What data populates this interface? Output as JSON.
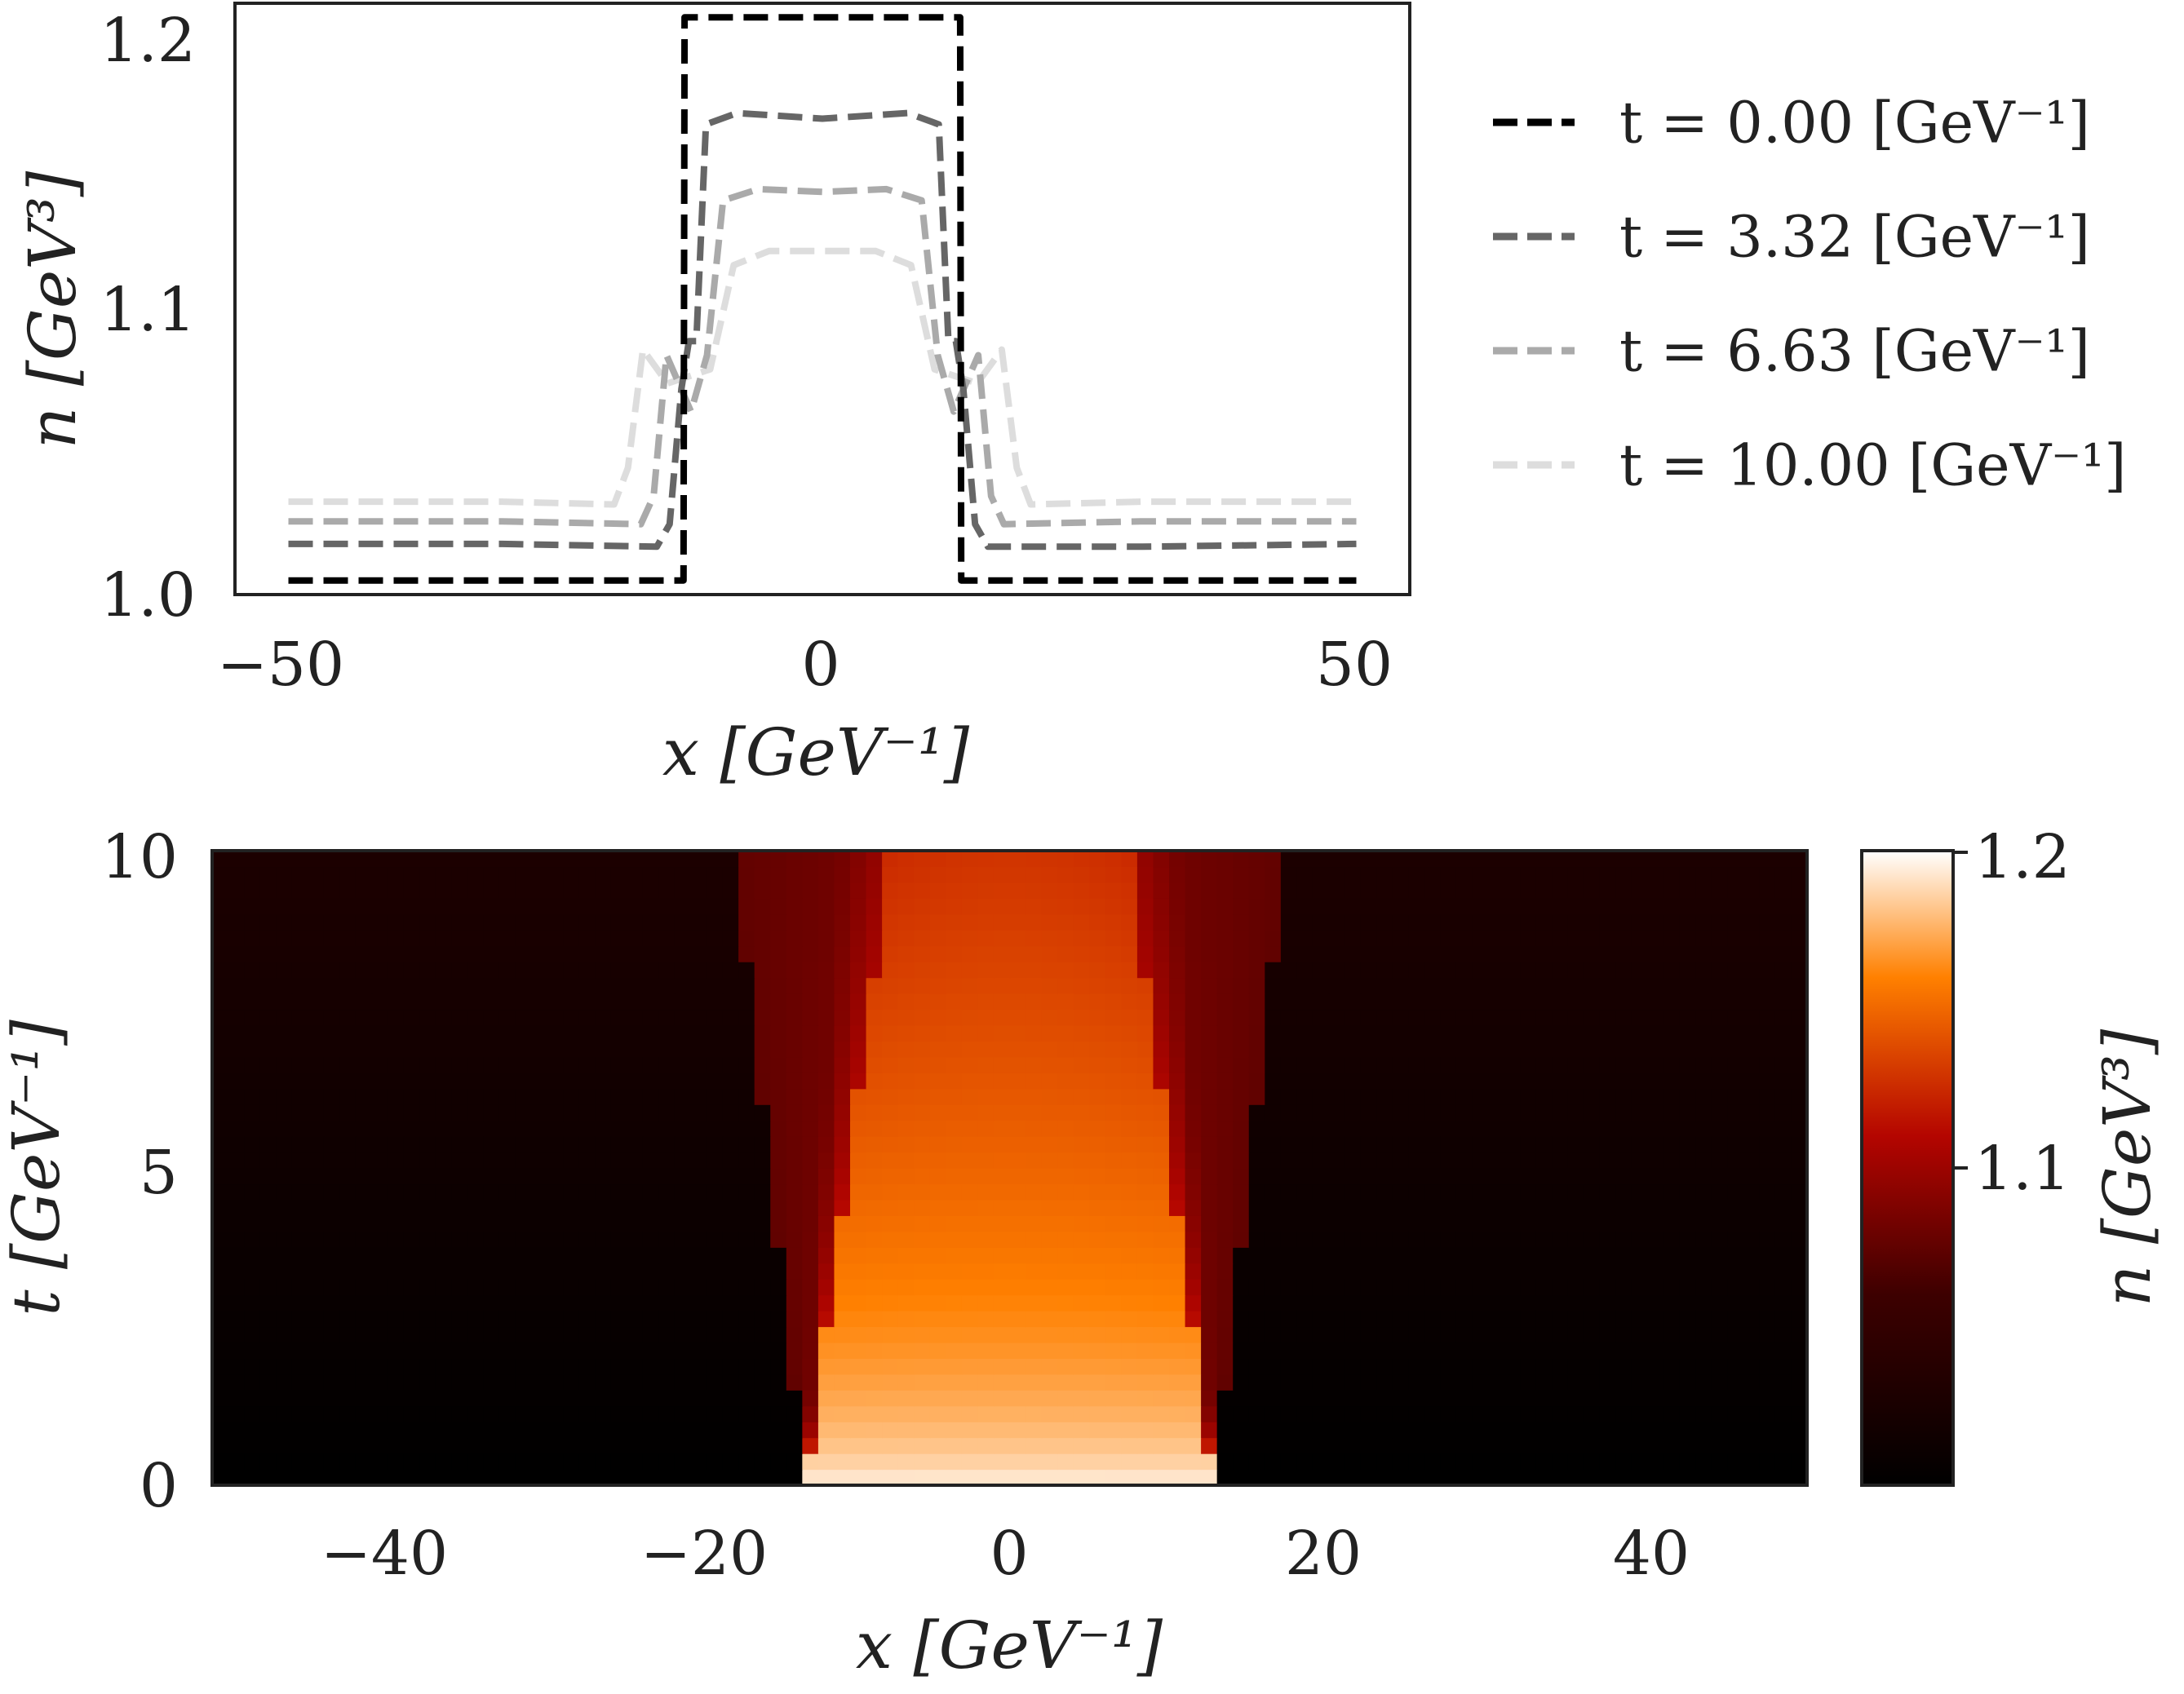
{
  "chart_data": [
    {
      "type": "line",
      "xlabel": "x [GeV⁻¹]",
      "ylabel": "n [GeV³]",
      "xlim": [
        -55,
        55
      ],
      "ylim": [
        0.995,
        1.205
      ],
      "xticks": [
        -50,
        0,
        50
      ],
      "xtick_labels": [
        "−50",
        "0",
        "50"
      ],
      "yticks": [
        1.0,
        1.1,
        1.2
      ],
      "ytick_labels": [
        "1.0",
        "1.1",
        "1.2"
      ],
      "grid": false,
      "legend_position": "outside-right",
      "line_style": "dashed",
      "series": [
        {
          "name": "t = 0.00 [GeV⁻¹]",
          "color": "#000000",
          "x": [
            -50,
            -13.0,
            -12.9,
            0,
            12.9,
            13.0,
            50
          ],
          "y": [
            1.0,
            1.0,
            1.2,
            1.2,
            1.2,
            1.0,
            1.0
          ]
        },
        {
          "name": "t = 3.32 [GeV⁻¹]",
          "color": "#666666",
          "x": [
            -50,
            -30,
            -15.5,
            -14.3,
            -13.2,
            -12.5,
            -11.8,
            -10.9,
            -8,
            0,
            8,
            10.9,
            11.8,
            12.5,
            13.2,
            14.3,
            15.5,
            30,
            50
          ],
          "y": [
            1.013,
            1.013,
            1.012,
            1.02,
            1.068,
            1.085,
            1.085,
            1.162,
            1.166,
            1.164,
            1.166,
            1.162,
            1.085,
            1.085,
            1.068,
            1.02,
            1.012,
            1.012,
            1.013
          ]
        },
        {
          "name": "t = 6.63 [GeV⁻¹]",
          "color": "#aaaaaa",
          "x": [
            -50,
            -30,
            -17.0,
            -15.8,
            -14.6,
            -12.3,
            -10.8,
            -9.3,
            -6,
            0,
            6,
            9.3,
            10.8,
            12.3,
            14.6,
            15.8,
            17.0,
            30,
            50
          ],
          "y": [
            1.021,
            1.021,
            1.02,
            1.03,
            1.08,
            1.06,
            1.08,
            1.135,
            1.139,
            1.138,
            1.139,
            1.135,
            1.08,
            1.06,
            1.08,
            1.03,
            1.02,
            1.021,
            1.021
          ]
        },
        {
          "name": "t = 10.00 [GeV⁻¹]",
          "color": "#dddddd",
          "x": [
            -50,
            -30,
            -19.5,
            -18.2,
            -16.8,
            -14.5,
            -10.5,
            -8.3,
            -5,
            0,
            5,
            8.3,
            10.5,
            14.5,
            16.8,
            18.2,
            19.5,
            30,
            50
          ],
          "y": [
            1.028,
            1.028,
            1.027,
            1.04,
            1.082,
            1.07,
            1.075,
            1.112,
            1.117,
            1.117,
            1.117,
            1.112,
            1.075,
            1.07,
            1.082,
            1.04,
            1.027,
            1.028,
            1.028
          ]
        }
      ]
    },
    {
      "type": "heatmap",
      "xlabel": "x [GeV⁻¹]",
      "ylabel": "t [GeV⁻¹]",
      "xlim": [
        -50,
        50
      ],
      "ylim": [
        0,
        10
      ],
      "xticks": [
        -40,
        -20,
        0,
        20,
        40
      ],
      "xtick_labels": [
        "−40",
        "−20",
        "0",
        "20",
        "40"
      ],
      "yticks": [
        0,
        5,
        10
      ],
      "ytick_labels": [
        "0",
        "5",
        "10"
      ],
      "colorscale": "gist_heat",
      "colorbar": {
        "label": "n [GeV³]",
        "range": [
          1.0,
          1.2
        ],
        "ticks": [
          1.1,
          1.2
        ],
        "tick_labels": [
          "1.1",
          "1.2"
        ]
      },
      "field": {
        "plateau_half_width_at_t0": 12.8,
        "plateau_half_width_at_t10": 7.5,
        "shock_half_width_at_t0": 12.8,
        "shock_half_width_at_t10": 17.3,
        "outer_n_at_t0": 1.0,
        "outer_n_at_t10": 1.028,
        "plateau_n_at_t0": 1.2,
        "plateau_n_at_t10": 1.125,
        "shell_n": 1.085
      }
    }
  ]
}
